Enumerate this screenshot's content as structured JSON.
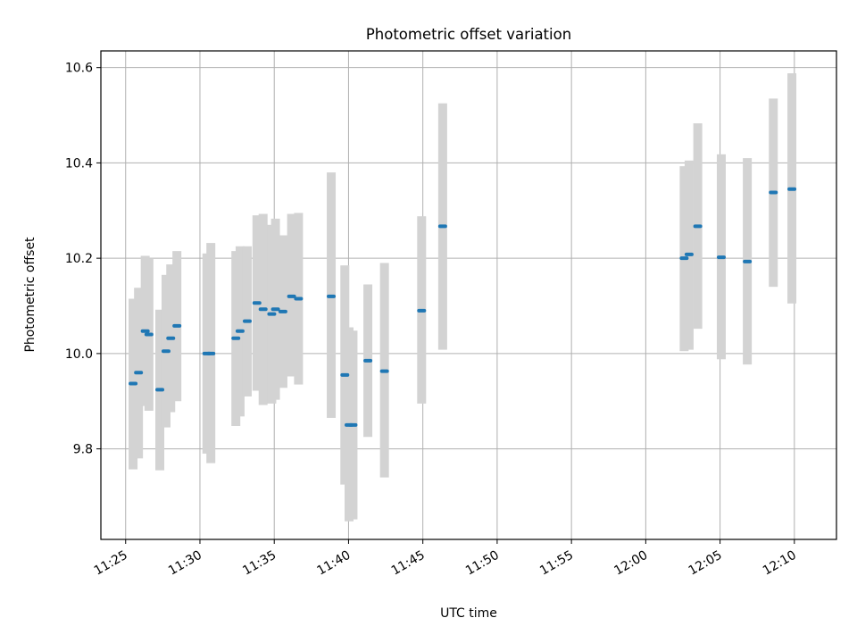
{
  "chart_data": {
    "type": "scatter",
    "title": "Photometric offset variation",
    "xlabel": "UTC time",
    "ylabel": "Photometric offset",
    "xlim": [
      "11:23:20",
      "12:12:50"
    ],
    "ylim": [
      9.61,
      10.635
    ],
    "grid": true,
    "x_ticks": [
      "11:25",
      "11:30",
      "11:35",
      "11:40",
      "11:45",
      "11:50",
      "11:55",
      "12:00",
      "12:05",
      "12:10"
    ],
    "y_ticks": [
      "9.8",
      "10.0",
      "10.2",
      "10.4",
      "10.6"
    ],
    "point_color": "#1f77b4",
    "band_color": "#d3d3d3",
    "series": [
      {
        "points": [
          {
            "t": "11:25:30",
            "y": 9.937,
            "lo": 9.757,
            "hi": 10.115
          },
          {
            "t": "11:25:52",
            "y": 9.96,
            "lo": 9.78,
            "hi": 10.138
          },
          {
            "t": "11:26:19",
            "y": 10.047,
            "lo": 9.89,
            "hi": 10.205
          },
          {
            "t": "11:26:34",
            "y": 10.04,
            "lo": 9.88,
            "hi": 10.2
          },
          {
            "t": "11:27:18",
            "y": 9.924,
            "lo": 9.755,
            "hi": 10.092
          },
          {
            "t": "11:27:43",
            "y": 10.005,
            "lo": 9.845,
            "hi": 10.165
          },
          {
            "t": "11:28:02",
            "y": 10.032,
            "lo": 9.877,
            "hi": 10.187
          },
          {
            "t": "11:28:27",
            "y": 10.058,
            "lo": 9.9,
            "hi": 10.215
          },
          {
            "t": "11:30:28",
            "y": 10.0,
            "lo": 9.79,
            "hi": 10.21
          },
          {
            "t": "11:30:44",
            "y": 10.0,
            "lo": 9.77,
            "hi": 10.232
          },
          {
            "t": "11:32:25",
            "y": 10.032,
            "lo": 9.848,
            "hi": 10.215
          },
          {
            "t": "11:32:42",
            "y": 10.047,
            "lo": 9.868,
            "hi": 10.225
          },
          {
            "t": "11:33:11",
            "y": 10.068,
            "lo": 9.91,
            "hi": 10.225
          },
          {
            "t": "11:33:50",
            "y": 10.106,
            "lo": 9.922,
            "hi": 10.29
          },
          {
            "t": "11:34:15",
            "y": 10.093,
            "lo": 9.892,
            "hi": 10.293
          },
          {
            "t": "11:34:50",
            "y": 10.083,
            "lo": 9.895,
            "hi": 10.27
          },
          {
            "t": "11:35:05",
            "y": 10.093,
            "lo": 9.903,
            "hi": 10.283
          },
          {
            "t": "11:35:35",
            "y": 10.088,
            "lo": 9.928,
            "hi": 10.248
          },
          {
            "t": "11:36:10",
            "y": 10.12,
            "lo": 9.952,
            "hi": 10.293
          },
          {
            "t": "11:36:38",
            "y": 10.115,
            "lo": 9.935,
            "hi": 10.295
          },
          {
            "t": "11:38:50",
            "y": 10.12,
            "lo": 9.865,
            "hi": 10.38
          },
          {
            "t": "11:39:45",
            "y": 9.955,
            "lo": 9.725,
            "hi": 10.185
          },
          {
            "t": "11:40:02",
            "y": 9.85,
            "lo": 9.648,
            "hi": 10.055
          },
          {
            "t": "11:40:18",
            "y": 9.85,
            "lo": 9.652,
            "hi": 10.048
          },
          {
            "t": "11:41:18",
            "y": 9.985,
            "lo": 9.825,
            "hi": 10.145
          },
          {
            "t": "11:42:25",
            "y": 9.963,
            "lo": 9.74,
            "hi": 10.19
          },
          {
            "t": "11:44:55",
            "y": 10.09,
            "lo": 9.895,
            "hi": 10.288
          },
          {
            "t": "11:46:20",
            "y": 10.267,
            "lo": 10.008,
            "hi": 10.525
          },
          {
            "t": "12:02:35",
            "y": 10.2,
            "lo": 10.005,
            "hi": 10.393
          },
          {
            "t": "12:02:55",
            "y": 10.208,
            "lo": 10.008,
            "hi": 10.405
          },
          {
            "t": "12:03:30",
            "y": 10.267,
            "lo": 10.052,
            "hi": 10.483
          },
          {
            "t": "12:05:05",
            "y": 10.202,
            "lo": 9.988,
            "hi": 10.418
          },
          {
            "t": "12:06:50",
            "y": 10.193,
            "lo": 9.977,
            "hi": 10.41
          },
          {
            "t": "12:08:35",
            "y": 10.338,
            "lo": 10.14,
            "hi": 10.535
          },
          {
            "t": "12:09:50",
            "y": 10.345,
            "lo": 10.105,
            "hi": 10.588
          }
        ]
      }
    ]
  }
}
